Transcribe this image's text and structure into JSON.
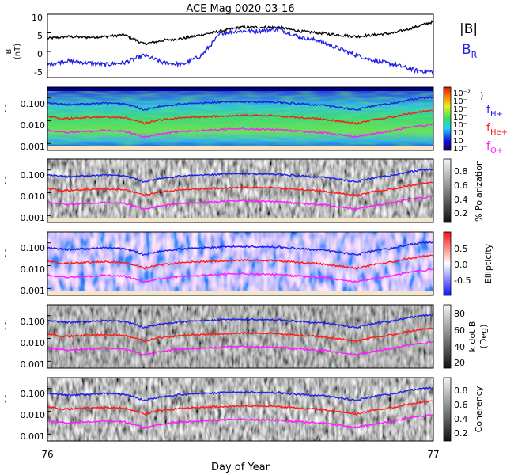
{
  "title": "ACE Mag 0020-03-16",
  "xlabel": "Day of Year",
  "x_ticks": [
    "76",
    "77"
  ],
  "colors": {
    "B_total": "#000000",
    "B_R": "#1f1fe6",
    "f_H": "#1f1fe6",
    "f_He": "#ff1a1a",
    "f_O": "#ff1aff"
  },
  "panel_b": {
    "ylabel_top": "B",
    "ylabel_bottom": "(nT)",
    "yticks": [
      "10",
      "5",
      "0",
      "-5"
    ],
    "legend_B": "|B|",
    "legend_BR_main": "B",
    "legend_BR_sub": "R"
  },
  "spectro": {
    "yticks": [
      "0.100",
      "0.010",
      "0.001"
    ],
    "ylabel_stub": ")",
    "panels": [
      {
        "name": "power",
        "colorbar_labels": [
          "10⁻²",
          "10⁻",
          "10⁻",
          "10⁻",
          "10⁻",
          "10⁻",
          "10⁻",
          "10⁻"
        ],
        "colorbar_paren": ")",
        "legend": [
          {
            "main": "f",
            "sub": "H+",
            "color": "#1f1fe6"
          },
          {
            "main": "f",
            "sub": "He+",
            "color": "#ff1a1a"
          },
          {
            "main": "f",
            "sub": "O+",
            "color": "#ff1aff"
          }
        ]
      },
      {
        "name": "polarization",
        "colorbar_labels": [
          "0.8",
          "0.6",
          "0.4",
          "0.2"
        ],
        "colorbar_title": "% Polarization"
      },
      {
        "name": "ellipticity",
        "colorbar_labels": [
          "0.5",
          "0.0",
          "-0.5"
        ],
        "colorbar_title": "Ellipticity"
      },
      {
        "name": "kdotb",
        "colorbar_labels": [
          "80",
          "60",
          "40",
          "20"
        ],
        "colorbar_title": "k dot B",
        "colorbar_title2": "(Deg)"
      },
      {
        "name": "coherency",
        "colorbar_labels": [
          "0.8",
          "0.6",
          "0.4",
          "0.2"
        ],
        "colorbar_title": "Coherency"
      }
    ]
  },
  "chart_data": [
    {
      "type": "line",
      "title": "ACE Mag 0020-03-16",
      "ylabel": "B (nT)",
      "ylim": [
        -7,
        10
      ],
      "x": [
        76.0,
        76.05,
        76.1,
        76.15,
        76.2,
        76.25,
        76.3,
        76.35,
        76.4,
        76.45,
        76.5,
        76.55,
        76.6,
        76.65,
        76.7,
        76.75,
        76.8,
        76.85,
        76.9,
        76.95,
        77.0
      ],
      "series": [
        {
          "name": "|B|",
          "values": [
            3.5,
            4.0,
            3.8,
            4.0,
            4.5,
            2.0,
            3.0,
            3.5,
            4.5,
            5.5,
            6.5,
            6.5,
            6.5,
            5.5,
            5.0,
            4.5,
            4.0,
            4.5,
            5.0,
            6.5,
            8.0
          ]
        },
        {
          "name": "B_R",
          "values": [
            -3.5,
            -2.5,
            -3.0,
            -3.5,
            -3.0,
            -1.0,
            -3.0,
            -3.5,
            -1.0,
            5.0,
            5.5,
            5.5,
            6.0,
            4.0,
            3.0,
            1.0,
            -1.0,
            -2.5,
            -3.5,
            -5.0,
            -5.5
          ]
        }
      ]
    },
    {
      "type": "line",
      "xlabel": "Day of Year",
      "ylim": [
        0.0005,
        0.3
      ],
      "yscale": "log",
      "x": [
        76.0,
        76.05,
        76.1,
        76.15,
        76.2,
        76.25,
        76.3,
        76.35,
        76.4,
        76.45,
        76.5,
        76.55,
        76.6,
        76.65,
        76.7,
        76.75,
        76.8,
        76.85,
        76.9,
        76.95,
        77.0
      ],
      "series": [
        {
          "name": "f_H+",
          "values": [
            0.06,
            0.05,
            0.055,
            0.06,
            0.055,
            0.03,
            0.045,
            0.055,
            0.06,
            0.065,
            0.07,
            0.068,
            0.066,
            0.055,
            0.05,
            0.04,
            0.03,
            0.045,
            0.06,
            0.09,
            0.11
          ]
        },
        {
          "name": "f_He+",
          "values": [
            0.015,
            0.0125,
            0.0138,
            0.015,
            0.0138,
            0.0075,
            0.0113,
            0.0138,
            0.015,
            0.0163,
            0.0175,
            0.017,
            0.0165,
            0.0138,
            0.0125,
            0.01,
            0.0075,
            0.0113,
            0.015,
            0.0225,
            0.0275
          ]
        },
        {
          "name": "f_O+",
          "values": [
            0.0038,
            0.0031,
            0.0034,
            0.0038,
            0.0034,
            0.0019,
            0.0028,
            0.0034,
            0.0038,
            0.0041,
            0.0044,
            0.0043,
            0.0041,
            0.0034,
            0.0031,
            0.0025,
            0.0019,
            0.0028,
            0.0038,
            0.0056,
            0.0069
          ]
        }
      ]
    }
  ]
}
